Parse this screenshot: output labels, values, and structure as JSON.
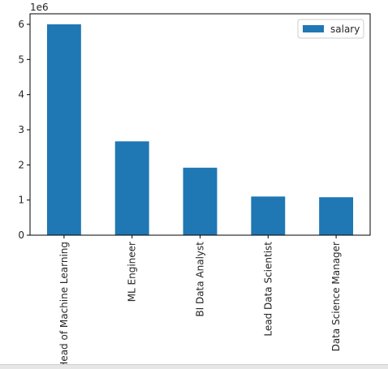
{
  "chart_data": {
    "type": "bar",
    "categories": [
      "Head of Machine Learning",
      "ML Engineer",
      "BI Data Analyst",
      "Lead Data Scientist",
      "Data Science Manager"
    ],
    "series": [
      {
        "name": "salary",
        "values": [
          6000000,
          2670000,
          1920000,
          1100000,
          1080000
        ]
      }
    ],
    "y_ticks": [
      0,
      1,
      2,
      3,
      4,
      5,
      6
    ],
    "y_exponent_label": "1e6",
    "ylim": [
      0,
      6300000
    ],
    "xlabel": "",
    "ylabel": "",
    "grid": false,
    "legend_position": "top-right",
    "colors": {
      "bar": "#1f77b4"
    }
  }
}
